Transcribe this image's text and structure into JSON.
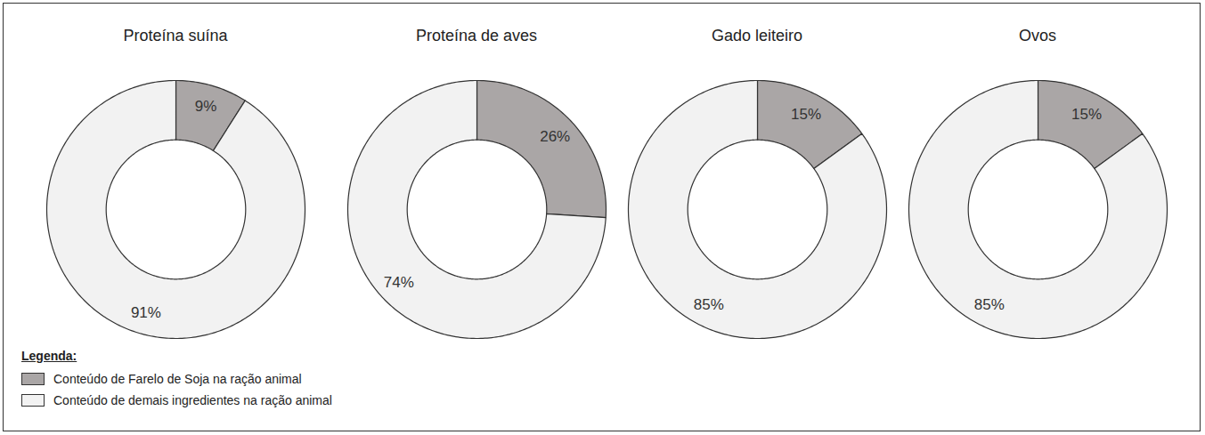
{
  "legend_title": "Legenda:",
  "chart_data": [
    {
      "type": "pie",
      "title": "Proteína suína",
      "categories": [
        "Conteúdo de Farelo de Soja na ração animal",
        "Conteúdo de demais ingredientes na ração animal"
      ],
      "values": [
        9,
        91
      ],
      "value_labels": [
        "9%",
        "91%"
      ],
      "colors": [
        "#aaa6a6",
        "#f2f2f2"
      ],
      "data_labels": true,
      "legend": "bottom-left"
    },
    {
      "type": "pie",
      "title": "Proteína de aves",
      "categories": [
        "Conteúdo de Farelo de Soja na ração animal",
        "Conteúdo de demais ingredientes na ração animal"
      ],
      "values": [
        26,
        74
      ],
      "value_labels": [
        "26%",
        "74%"
      ],
      "colors": [
        "#aaa6a6",
        "#f2f2f2"
      ],
      "data_labels": true,
      "legend": "bottom-left"
    },
    {
      "type": "pie",
      "title": "Gado leiteiro",
      "categories": [
        "Conteúdo de Farelo de Soja na ração animal",
        "Conteúdo de demais ingredientes na ração animal"
      ],
      "values": [
        15,
        85
      ],
      "value_labels": [
        "15%",
        "85%"
      ],
      "colors": [
        "#aaa6a6",
        "#f2f2f2"
      ],
      "data_labels": true,
      "legend": "bottom-left"
    },
    {
      "type": "pie",
      "title": "Ovos",
      "categories": [
        "Conteúdo de Farelo de Soja na ração animal",
        "Conteúdo de demais ingredientes na ração animal"
      ],
      "values": [
        15,
        85
      ],
      "value_labels": [
        "15%",
        "85%"
      ],
      "colors": [
        "#aaa6a6",
        "#f2f2f2"
      ],
      "data_labels": true,
      "legend": "bottom-left"
    }
  ]
}
